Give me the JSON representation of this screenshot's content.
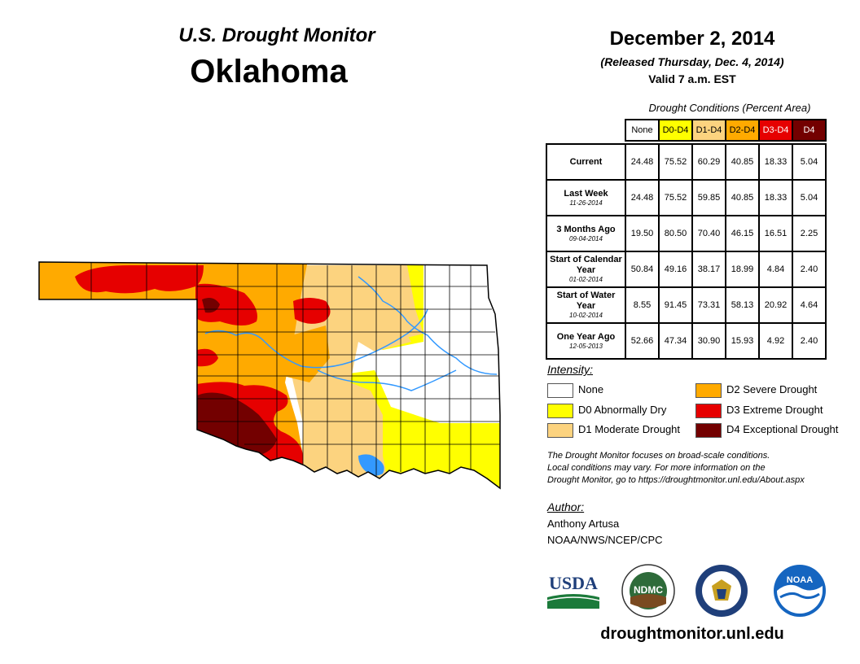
{
  "header": {
    "title": "U.S. Drought Monitor",
    "state": "Oklahoma",
    "date": "December 2, 2014",
    "released": "(Released Thursday, Dec. 4, 2014)",
    "valid": "Valid 7 a.m. EST"
  },
  "table": {
    "title": "Drought Conditions (Percent Area)",
    "columns": [
      "None",
      "D0-D4",
      "D1-D4",
      "D2-D4",
      "D3-D4",
      "D4"
    ],
    "rows": [
      {
        "label": "Current",
        "date": "",
        "values": [
          "24.48",
          "75.52",
          "60.29",
          "40.85",
          "18.33",
          "5.04"
        ]
      },
      {
        "label": "Last Week",
        "date": "11-26-2014",
        "values": [
          "24.48",
          "75.52",
          "59.85",
          "40.85",
          "18.33",
          "5.04"
        ]
      },
      {
        "label": "3 Months Ago",
        "date": "09-04-2014",
        "values": [
          "19.50",
          "80.50",
          "70.40",
          "46.15",
          "16.51",
          "2.25"
        ]
      },
      {
        "label": "Start of Calendar Year",
        "date": "01-02-2014",
        "values": [
          "50.84",
          "49.16",
          "38.17",
          "18.99",
          "4.84",
          "2.40"
        ]
      },
      {
        "label": "Start of Water Year",
        "date": "10-02-2014",
        "values": [
          "8.55",
          "91.45",
          "73.31",
          "58.13",
          "20.92",
          "4.64"
        ]
      },
      {
        "label": "One Year Ago",
        "date": "12-05-2013",
        "values": [
          "52.66",
          "47.34",
          "30.90",
          "15.93",
          "4.92",
          "2.40"
        ]
      }
    ]
  },
  "legend": {
    "title": "Intensity:",
    "items": [
      {
        "label": "None",
        "color": "#ffffff"
      },
      {
        "label": "D0 Abnormally Dry",
        "color": "#ffff00"
      },
      {
        "label": "D1 Moderate Drought",
        "color": "#fcd37f"
      },
      {
        "label": "D2 Severe Drought",
        "color": "#ffaa00"
      },
      {
        "label": "D3 Extreme Drought",
        "color": "#e60000"
      },
      {
        "label": "D4 Exceptional Drought",
        "color": "#730000"
      }
    ]
  },
  "note": {
    "line1": "The Drought Monitor focuses on broad-scale conditions.",
    "line2": "Local conditions may vary. For more information on the",
    "line3": "Drought Monitor, go to https://droughtmonitor.unl.edu/About.aspx"
  },
  "author": {
    "title": "Author:",
    "name": "Anthony Artusa",
    "org": "NOAA/NWS/NCEP/CPC"
  },
  "logos": {
    "usda": "USDA",
    "ndmc": "NDMC",
    "noaa": "NOAA",
    "commerce_icon": "department-of-commerce-seal-icon"
  },
  "website": "droughtmonitor.unl.edu",
  "colors": {
    "none": "#ffffff",
    "d0": "#ffff00",
    "d1": "#fcd37f",
    "d2": "#ffaa00",
    "d3": "#e60000",
    "d4": "#730000",
    "river": "#3399ff"
  }
}
